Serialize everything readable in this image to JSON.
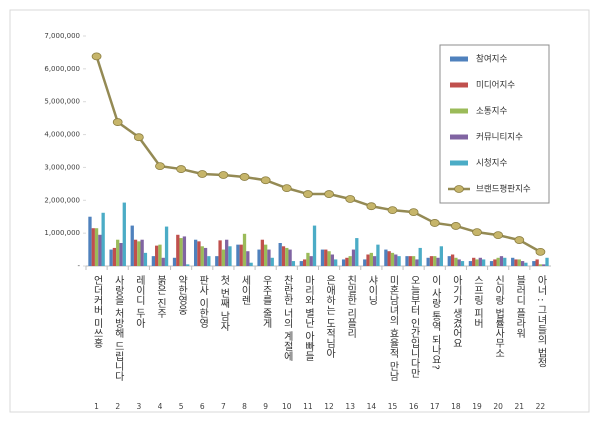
{
  "chart_data": {
    "type": "bar",
    "categories": [
      "언더커버 미쓰홍",
      "사랑을 처방해 드립니다",
      "레이디 두아",
      "붉은 진주",
      "약한영웅",
      "판사 이한영",
      "첫 번째 남자",
      "세이렌",
      "우주를 줄게",
      "찬란한 너의 계절에",
      "마리와 별난 아빠들",
      "은애하는 도적님아",
      "친밀한 리플리",
      "샤이닝",
      "미혼남녀의 효율적 만남",
      "오늘부터 인간입니다만",
      "이 사랑 통역 되나요?",
      "아기가 생겼어요",
      "스프링 피버",
      "신이랑 법률사무소",
      "블러디 플라워",
      "아너 : 그녀들의 법정"
    ],
    "ranks": [
      1,
      2,
      3,
      4,
      5,
      6,
      7,
      8,
      9,
      10,
      11,
      12,
      13,
      14,
      15,
      16,
      17,
      18,
      19,
      20,
      21,
      22
    ],
    "series": [
      {
        "name": "참여지수",
        "color": "#4f81bd",
        "type": "bar",
        "values": [
          1500000,
          500000,
          1230000,
          300000,
          250000,
          800000,
          300000,
          650000,
          500000,
          700000,
          150000,
          500000,
          200000,
          200000,
          500000,
          300000,
          250000,
          300000,
          150000,
          150000,
          250000,
          150000
        ]
      },
      {
        "name": "미디어지수",
        "color": "#c0504d",
        "type": "bar",
        "values": [
          1150000,
          550000,
          800000,
          620000,
          950000,
          750000,
          780000,
          650000,
          800000,
          600000,
          200000,
          500000,
          250000,
          350000,
          450000,
          300000,
          300000,
          350000,
          250000,
          200000,
          200000,
          200000
        ]
      },
      {
        "name": "소통지수",
        "color": "#9bbb59",
        "type": "bar",
        "values": [
          1150000,
          800000,
          750000,
          650000,
          850000,
          600000,
          500000,
          980000,
          650000,
          550000,
          400000,
          450000,
          300000,
          400000,
          400000,
          300000,
          300000,
          250000,
          200000,
          250000,
          200000,
          50000
        ]
      },
      {
        "name": "커뮤니티지수",
        "color": "#8064a2",
        "type": "bar",
        "values": [
          950000,
          700000,
          800000,
          250000,
          900000,
          550000,
          800000,
          450000,
          500000,
          500000,
          300000,
          350000,
          500000,
          300000,
          350000,
          200000,
          250000,
          200000,
          250000,
          300000,
          150000,
          50000
        ]
      },
      {
        "name": "시청지수",
        "color": "#4bacc6",
        "type": "bar",
        "values": [
          1620000,
          1930000,
          400000,
          1200000,
          50000,
          300000,
          600000,
          100000,
          250000,
          150000,
          1230000,
          200000,
          850000,
          650000,
          300000,
          550000,
          600000,
          150000,
          200000,
          250000,
          100000,
          250000
        ]
      },
      {
        "name": "브랜드평판지수",
        "color": "#948a54",
        "type": "line",
        "values": [
          6380000,
          4380000,
          3920000,
          3040000,
          2950000,
          2800000,
          2770000,
          2710000,
          2610000,
          2370000,
          2190000,
          2190000,
          2040000,
          1820000,
          1700000,
          1640000,
          1310000,
          1220000,
          1030000,
          940000,
          790000,
          430000
        ]
      }
    ],
    "ylim": [
      0,
      7000000
    ],
    "yticks": [
      {
        "value": 0,
        "label": "-"
      },
      {
        "value": 1000000,
        "label": "1,000,000"
      },
      {
        "value": 2000000,
        "label": "2,000,000"
      },
      {
        "value": 3000000,
        "label": "3,000,000"
      },
      {
        "value": 4000000,
        "label": "4,000,000"
      },
      {
        "value": 5000000,
        "label": "5,000,000"
      },
      {
        "value": 6000000,
        "label": "6,000,000"
      },
      {
        "value": 7000000,
        "label": "7,000,000"
      }
    ],
    "grid": false,
    "legend": "upper right"
  }
}
